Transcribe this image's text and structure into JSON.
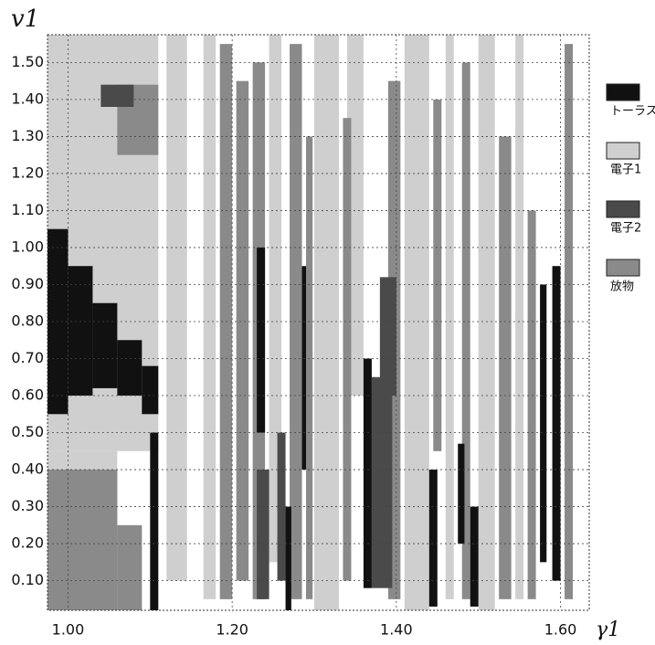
{
  "chart_data": {
    "type": "region",
    "y_label": "v1",
    "x_label": "γ1",
    "xlim": [
      0.975,
      1.635
    ],
    "ylim": [
      0.02,
      1.575
    ],
    "xticks": [
      {
        "value": 1.0,
        "label": "1.00"
      },
      {
        "value": 1.2,
        "label": "1.20"
      },
      {
        "value": 1.4,
        "label": "1.40"
      },
      {
        "value": 1.6,
        "label": "1.60"
      }
    ],
    "yticks": [
      {
        "value": 0.1,
        "label": "0.10"
      },
      {
        "value": 0.2,
        "label": "0.20"
      },
      {
        "value": 0.3,
        "label": "0.30"
      },
      {
        "value": 0.4,
        "label": "0.40"
      },
      {
        "value": 0.5,
        "label": "0.50"
      },
      {
        "value": 0.6,
        "label": "0.60"
      },
      {
        "value": 0.7,
        "label": "0.70"
      },
      {
        "value": 0.8,
        "label": "0.80"
      },
      {
        "value": 0.9,
        "label": "0.90"
      },
      {
        "value": 1.0,
        "label": "1.00"
      },
      {
        "value": 1.1,
        "label": "1.10"
      },
      {
        "value": 1.2,
        "label": "1.20"
      },
      {
        "value": 1.3,
        "label": "1.30"
      },
      {
        "value": 1.4,
        "label": "1.40"
      },
      {
        "value": 1.5,
        "label": "1.50"
      }
    ],
    "grid": true,
    "series": [
      {
        "name": "電子1",
        "color": "#cfcfcf",
        "rects": [
          [
            0.975,
            1.11,
            0.45,
            1.575
          ],
          [
            0.975,
            1.06,
            0.02,
            0.45
          ],
          [
            1.12,
            1.145,
            0.1,
            1.575
          ],
          [
            1.165,
            1.18,
            0.05,
            1.575
          ],
          [
            1.245,
            1.26,
            0.15,
            1.575
          ],
          [
            1.3,
            1.33,
            0.02,
            1.575
          ],
          [
            1.34,
            1.36,
            0.6,
            1.575
          ],
          [
            1.41,
            1.44,
            0.02,
            1.575
          ],
          [
            1.46,
            1.47,
            0.05,
            1.575
          ],
          [
            1.5,
            1.52,
            0.02,
            1.575
          ],
          [
            1.545,
            1.555,
            0.05,
            1.575
          ]
        ]
      },
      {
        "name": "放物",
        "color": "#8a8a8a",
        "rects": [
          [
            0.975,
            1.06,
            0.02,
            0.4
          ],
          [
            1.06,
            1.09,
            0.02,
            0.25
          ],
          [
            1.06,
            1.11,
            1.25,
            1.44
          ],
          [
            1.185,
            1.2,
            0.05,
            1.55
          ],
          [
            1.205,
            1.22,
            0.1,
            1.45
          ],
          [
            1.225,
            1.24,
            0.05,
            1.5
          ],
          [
            1.27,
            1.285,
            0.05,
            1.55
          ],
          [
            1.29,
            1.298,
            0.05,
            1.3
          ],
          [
            1.335,
            1.345,
            0.1,
            1.35
          ],
          [
            1.39,
            1.405,
            0.05,
            1.45
          ],
          [
            1.445,
            1.455,
            0.45,
            1.4
          ],
          [
            1.48,
            1.49,
            0.05,
            1.5
          ],
          [
            1.525,
            1.54,
            0.05,
            1.3
          ],
          [
            1.56,
            1.57,
            0.05,
            1.1
          ],
          [
            1.605,
            1.615,
            0.05,
            1.55
          ]
        ]
      },
      {
        "name": "電子2",
        "color": "#4a4a4a",
        "rects": [
          [
            1.37,
            1.395,
            0.08,
            0.65
          ],
          [
            1.38,
            1.4,
            0.6,
            0.92
          ],
          [
            1.04,
            1.08,
            1.38,
            1.44
          ],
          [
            1.23,
            1.245,
            0.05,
            0.4
          ],
          [
            1.255,
            1.265,
            0.1,
            0.5
          ]
        ]
      },
      {
        "name": "トーラス",
        "color": "#111111",
        "rects": [
          [
            0.975,
            1.0,
            0.55,
            1.05
          ],
          [
            1.0,
            1.03,
            0.6,
            0.95
          ],
          [
            1.03,
            1.06,
            0.62,
            0.85
          ],
          [
            1.06,
            1.09,
            0.6,
            0.75
          ],
          [
            1.09,
            1.11,
            0.55,
            0.68
          ],
          [
            1.1,
            1.11,
            0.02,
            0.5
          ],
          [
            1.265,
            1.272,
            0.02,
            0.3
          ],
          [
            1.36,
            1.37,
            0.08,
            0.7
          ],
          [
            1.44,
            1.45,
            0.03,
            0.4
          ],
          [
            1.475,
            1.483,
            0.2,
            0.47
          ],
          [
            1.49,
            1.5,
            0.03,
            0.3
          ],
          [
            1.575,
            1.583,
            0.15,
            0.9
          ],
          [
            1.59,
            1.6,
            0.1,
            0.95
          ],
          [
            1.23,
            1.24,
            0.5,
            1.0
          ],
          [
            1.285,
            1.29,
            0.4,
            0.95
          ]
        ]
      }
    ]
  }
}
